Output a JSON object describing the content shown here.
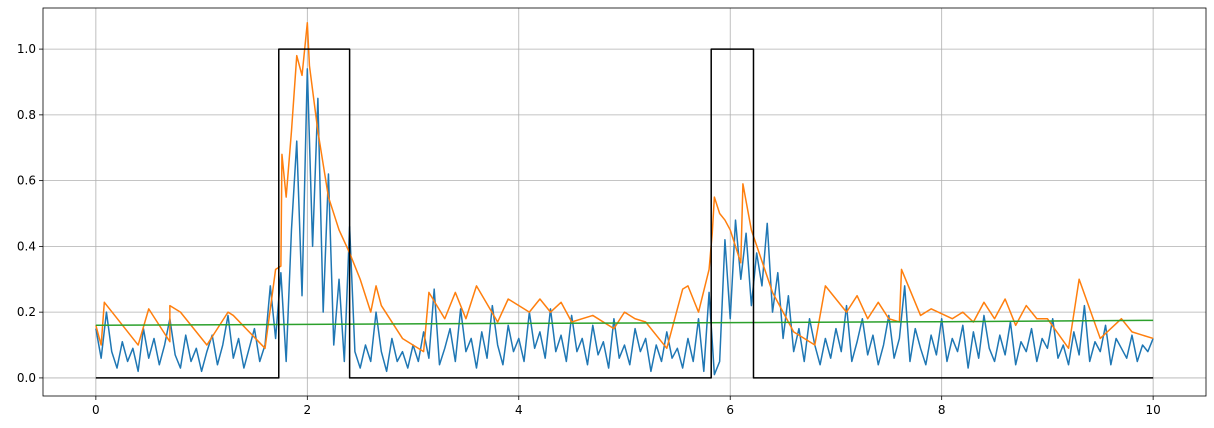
{
  "chart_data": {
    "type": "line",
    "title": "",
    "xlabel": "",
    "ylabel": "",
    "xlim": [
      -0.5,
      10.5
    ],
    "ylim": [
      -0.055,
      1.125
    ],
    "grid": true,
    "legend": "none",
    "xticks": [
      0,
      2,
      4,
      6,
      8,
      10
    ],
    "xtick_labels": [
      "0",
      "2",
      "4",
      "6",
      "8",
      "10"
    ],
    "yticks": [
      0.0,
      0.2,
      0.4,
      0.6,
      0.8,
      1.0
    ],
    "ytick_labels": [
      "0.0",
      "0.2",
      "0.4",
      "0.6",
      "0.8",
      "1.0"
    ],
    "series": [
      {
        "color": "#1f77b4",
        "x": [
          0.0,
          0.05,
          0.1,
          0.15,
          0.2,
          0.25,
          0.3,
          0.35,
          0.4,
          0.45,
          0.5,
          0.55,
          0.6,
          0.65,
          0.7,
          0.75,
          0.8,
          0.85,
          0.9,
          0.95,
          1.0,
          1.05,
          1.1,
          1.15,
          1.2,
          1.25,
          1.3,
          1.35,
          1.4,
          1.45,
          1.5,
          1.55,
          1.6,
          1.65,
          1.7,
          1.75,
          1.8,
          1.85,
          1.9,
          1.95,
          2.0,
          2.05,
          2.1,
          2.15,
          2.2,
          2.25,
          2.3,
          2.35,
          2.4,
          2.45,
          2.5,
          2.55,
          2.6,
          2.65,
          2.7,
          2.75,
          2.8,
          2.85,
          2.9,
          2.95,
          3.0,
          3.05,
          3.1,
          3.15,
          3.2,
          3.25,
          3.3,
          3.35,
          3.4,
          3.45,
          3.5,
          3.55,
          3.6,
          3.65,
          3.7,
          3.75,
          3.8,
          3.85,
          3.9,
          3.95,
          4.0,
          4.05,
          4.1,
          4.15,
          4.2,
          4.25,
          4.3,
          4.35,
          4.4,
          4.45,
          4.5,
          4.55,
          4.6,
          4.65,
          4.7,
          4.75,
          4.8,
          4.85,
          4.9,
          4.95,
          5.0,
          5.05,
          5.1,
          5.15,
          5.2,
          5.25,
          5.3,
          5.35,
          5.4,
          5.45,
          5.5,
          5.55,
          5.6,
          5.65,
          5.7,
          5.75,
          5.8,
          5.85,
          5.9,
          5.95,
          6.0,
          6.05,
          6.1,
          6.15,
          6.2,
          6.25,
          6.3,
          6.35,
          6.4,
          6.45,
          6.5,
          6.55,
          6.6,
          6.65,
          6.7,
          6.75,
          6.8,
          6.85,
          6.9,
          6.95,
          7.0,
          7.05,
          7.1,
          7.15,
          7.2,
          7.25,
          7.3,
          7.35,
          7.4,
          7.45,
          7.5,
          7.55,
          7.6,
          7.65,
          7.7,
          7.75,
          7.8,
          7.85,
          7.9,
          7.95,
          8.0,
          8.05,
          8.1,
          8.15,
          8.2,
          8.25,
          8.3,
          8.35,
          8.4,
          8.45,
          8.5,
          8.55,
          8.6,
          8.65,
          8.7,
          8.75,
          8.8,
          8.85,
          8.9,
          8.95,
          9.0,
          9.05,
          9.1,
          9.15,
          9.2,
          9.25,
          9.3,
          9.35,
          9.4,
          9.45,
          9.5,
          9.55,
          9.6,
          9.65,
          9.7,
          9.75,
          9.8,
          9.85,
          9.9,
          9.95,
          10.0
        ],
        "y": [
          0.15,
          0.06,
          0.2,
          0.08,
          0.03,
          0.11,
          0.05,
          0.09,
          0.02,
          0.15,
          0.06,
          0.12,
          0.04,
          0.1,
          0.18,
          0.07,
          0.03,
          0.13,
          0.05,
          0.09,
          0.02,
          0.08,
          0.13,
          0.04,
          0.1,
          0.19,
          0.06,
          0.12,
          0.03,
          0.09,
          0.15,
          0.05,
          0.1,
          0.28,
          0.12,
          0.32,
          0.05,
          0.45,
          0.72,
          0.25,
          0.94,
          0.4,
          0.85,
          0.2,
          0.62,
          0.1,
          0.3,
          0.05,
          0.46,
          0.08,
          0.03,
          0.1,
          0.05,
          0.2,
          0.08,
          0.02,
          0.12,
          0.05,
          0.08,
          0.03,
          0.1,
          0.05,
          0.14,
          0.06,
          0.27,
          0.04,
          0.09,
          0.15,
          0.05,
          0.21,
          0.08,
          0.12,
          0.03,
          0.14,
          0.06,
          0.22,
          0.1,
          0.04,
          0.16,
          0.08,
          0.12,
          0.05,
          0.2,
          0.09,
          0.14,
          0.06,
          0.21,
          0.08,
          0.13,
          0.05,
          0.19,
          0.08,
          0.12,
          0.04,
          0.16,
          0.07,
          0.11,
          0.03,
          0.18,
          0.06,
          0.1,
          0.04,
          0.15,
          0.08,
          0.12,
          0.02,
          0.1,
          0.05,
          0.14,
          0.06,
          0.09,
          0.03,
          0.12,
          0.05,
          0.18,
          0.02,
          0.26,
          0.01,
          0.05,
          0.42,
          0.18,
          0.48,
          0.3,
          0.44,
          0.22,
          0.38,
          0.28,
          0.47,
          0.2,
          0.32,
          0.12,
          0.25,
          0.08,
          0.15,
          0.05,
          0.18,
          0.1,
          0.04,
          0.12,
          0.06,
          0.15,
          0.08,
          0.22,
          0.05,
          0.11,
          0.18,
          0.07,
          0.13,
          0.04,
          0.1,
          0.19,
          0.06,
          0.12,
          0.28,
          0.05,
          0.15,
          0.09,
          0.04,
          0.13,
          0.07,
          0.18,
          0.05,
          0.12,
          0.08,
          0.16,
          0.03,
          0.14,
          0.06,
          0.19,
          0.09,
          0.05,
          0.13,
          0.07,
          0.17,
          0.04,
          0.11,
          0.08,
          0.15,
          0.05,
          0.12,
          0.09,
          0.18,
          0.06,
          0.1,
          0.04,
          0.14,
          0.07,
          0.22,
          0.05,
          0.11,
          0.08,
          0.16,
          0.04,
          0.12,
          0.09,
          0.06,
          0.13,
          0.05,
          0.1,
          0.08,
          0.12
        ]
      },
      {
        "color": "#ff7f0e",
        "x": [
          0.0,
          0.05,
          0.08,
          0.4,
          0.5,
          0.7,
          0.7,
          0.8,
          1.05,
          1.25,
          1.3,
          1.6,
          1.7,
          1.75,
          1.76,
          1.8,
          1.85,
          1.9,
          1.95,
          2.0,
          2.02,
          2.1,
          2.2,
          2.3,
          2.4,
          2.5,
          2.6,
          2.65,
          2.7,
          2.9,
          3.1,
          3.15,
          3.3,
          3.4,
          3.5,
          3.6,
          3.8,
          3.9,
          4.1,
          4.2,
          4.3,
          4.4,
          4.5,
          4.7,
          4.9,
          5.0,
          5.1,
          5.2,
          5.4,
          5.55,
          5.6,
          5.7,
          5.8,
          5.83,
          5.85,
          5.9,
          5.95,
          6.0,
          6.1,
          6.12,
          6.2,
          6.4,
          6.5,
          6.6,
          6.8,
          6.9,
          7.1,
          7.2,
          7.3,
          7.4,
          7.5,
          7.6,
          7.62,
          7.8,
          7.9,
          8.1,
          8.2,
          8.3,
          8.4,
          8.5,
          8.6,
          8.7,
          8.8,
          8.9,
          9.0,
          9.2,
          9.3,
          9.5,
          9.7,
          9.8,
          10.0
        ],
        "y": [
          0.16,
          0.1,
          0.23,
          0.1,
          0.21,
          0.11,
          0.22,
          0.2,
          0.1,
          0.2,
          0.19,
          0.09,
          0.33,
          0.34,
          0.68,
          0.55,
          0.75,
          0.98,
          0.92,
          1.08,
          0.95,
          0.75,
          0.55,
          0.45,
          0.38,
          0.3,
          0.2,
          0.28,
          0.22,
          0.12,
          0.08,
          0.26,
          0.18,
          0.26,
          0.18,
          0.28,
          0.17,
          0.24,
          0.2,
          0.24,
          0.2,
          0.23,
          0.17,
          0.19,
          0.15,
          0.2,
          0.18,
          0.17,
          0.09,
          0.27,
          0.28,
          0.2,
          0.33,
          0.44,
          0.55,
          0.5,
          0.48,
          0.45,
          0.35,
          0.59,
          0.45,
          0.26,
          0.2,
          0.14,
          0.1,
          0.28,
          0.2,
          0.25,
          0.18,
          0.23,
          0.18,
          0.17,
          0.33,
          0.19,
          0.21,
          0.18,
          0.2,
          0.17,
          0.23,
          0.18,
          0.24,
          0.16,
          0.22,
          0.18,
          0.18,
          0.09,
          0.3,
          0.12,
          0.18,
          0.14,
          0.12
        ]
      },
      {
        "color": "#2ca02c",
        "x": [
          0,
          2,
          4,
          6,
          8,
          10
        ],
        "y": [
          0.16,
          0.163,
          0.166,
          0.168,
          0.171,
          0.175
        ]
      },
      {
        "color": "#000000",
        "x": [
          0,
          1.73,
          1.73,
          2.4,
          2.4,
          5.82,
          5.82,
          6.22,
          6.22,
          10
        ],
        "y": [
          0,
          0,
          1,
          1,
          0,
          0,
          1,
          1,
          0,
          0
        ]
      }
    ]
  }
}
